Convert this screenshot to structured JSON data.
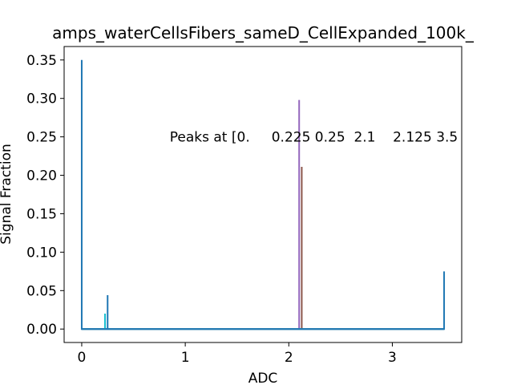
{
  "chart_data": {
    "type": "line",
    "title": "amps_waterCellsFibers_sameD_CellExpanded_100k_",
    "xlabel": "ADC",
    "ylabel": "Signal Fraction",
    "xlim": [
      -0.17,
      3.67
    ],
    "ylim": [
      -0.0175,
      0.3675
    ],
    "x_ticks": [
      0,
      1,
      2,
      3
    ],
    "x_tick_labels": [
      "0",
      "1",
      "2",
      "3"
    ],
    "y_ticks": [
      0.0,
      0.05,
      0.1,
      0.15,
      0.2,
      0.25,
      0.3,
      0.35
    ],
    "y_tick_labels": [
      "0.00",
      "0.05",
      "0.10",
      "0.15",
      "0.20",
      "0.25",
      "0.30",
      "0.35"
    ],
    "grid": false,
    "annotation": "Peaks at [0.     0.225 0.25  2.1    2.125 3.5",
    "annotation_position": {
      "x": 0.85,
      "y": 0.25
    },
    "series": [
      {
        "color": "#9467bd",
        "x": [
          0,
          2.1,
          2.1,
          2.1,
          3.5
        ],
        "y": [
          0,
          0,
          0.298,
          0,
          0
        ]
      },
      {
        "color": "#8c564b",
        "x": [
          0,
          2.125,
          2.125,
          2.125,
          3.5
        ],
        "y": [
          0,
          0,
          0.211,
          0,
          0
        ]
      },
      {
        "color": "#17becf",
        "x": [
          0,
          0.225,
          0.225,
          0.225,
          3.5
        ],
        "y": [
          0,
          0,
          0.02,
          0,
          0
        ]
      },
      {
        "color": "#1f77b4",
        "x": [
          0,
          0,
          0,
          0.25,
          0.25,
          0.25,
          3.5,
          3.5
        ],
        "y": [
          0,
          0.35,
          0,
          0,
          0.044,
          0,
          0,
          0.075
        ]
      }
    ]
  }
}
